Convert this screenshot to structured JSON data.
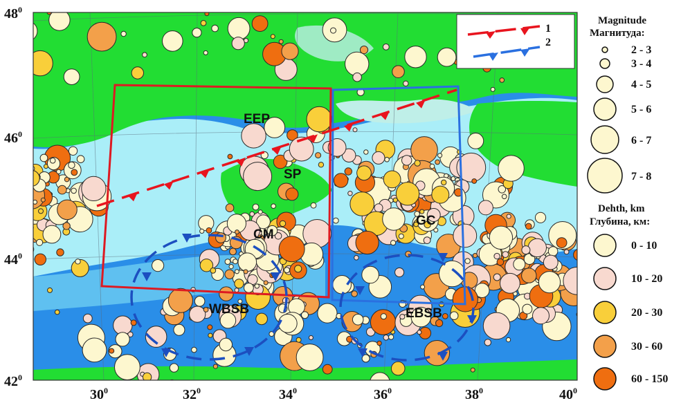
{
  "map": {
    "lat_ticks": [
      {
        "label": "48",
        "sup": "0"
      },
      {
        "label": "46",
        "sup": "0"
      },
      {
        "label": "44",
        "sup": "0"
      },
      {
        "label": "42",
        "sup": "0"
      }
    ],
    "lon_ticks": [
      {
        "label": "30",
        "sup": "0"
      },
      {
        "label": "32",
        "sup": "0"
      },
      {
        "label": "34",
        "sup": "0"
      },
      {
        "label": "36",
        "sup": "0"
      },
      {
        "label": "38",
        "sup": "0"
      },
      {
        "label": "40",
        "sup": "0"
      }
    ],
    "region_labels": {
      "eep": "EEP",
      "sp": "SP",
      "cm": "CM",
      "gc": "GC",
      "wbsb": "WBSB",
      "ebsb": "EBSB"
    },
    "colors": {
      "land": "#22dd33",
      "shelf": "#aaeef8",
      "deep_sea": "#2a8ee8",
      "fault_1": "#e8141e",
      "fault_2": "#2a70e0",
      "box_1": "#dd1a22",
      "box_2": "#2a70e0"
    }
  },
  "inset_legend": {
    "item1": "1",
    "item2": "2"
  },
  "legend": {
    "magnitude_title_en": "Magnitude",
    "magnitude_title_ru": "Магнитуда:",
    "magnitude_classes": [
      "2 - 3",
      "3 - 4",
      "4 - 5",
      "5 - 6",
      "6 - 7",
      "7 - 8"
    ],
    "depth_title_en": "Dehth, km",
    "depth_title_ru": "Глубина, км:",
    "depth_classes": [
      "0 - 10",
      "10 - 20",
      "20 - 30",
      "30 - 60",
      "60 - 150"
    ],
    "depth_colors": [
      "#fdf7cf",
      "#f8d9cf",
      "#f9cf3a",
      "#f3a04a",
      "#ef6e10"
    ]
  }
}
